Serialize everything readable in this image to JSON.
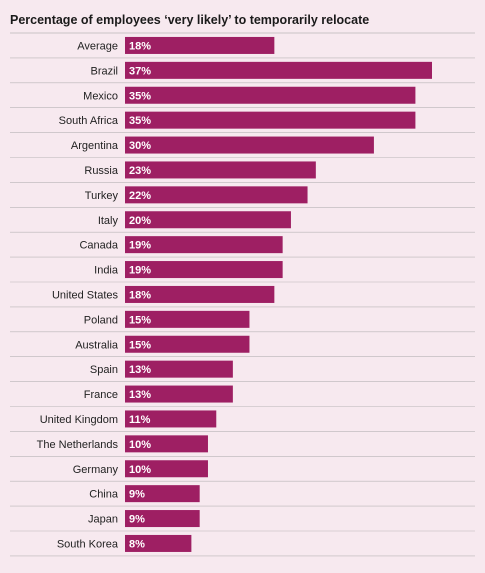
{
  "chart_data": {
    "type": "bar",
    "orientation": "horizontal",
    "title": "Percentage of employees ‘very likely’ to temporarily relocate",
    "categories": [
      "Average",
      "Brazil",
      "Mexico",
      "South Africa",
      "Argentina",
      "Russia",
      "Turkey",
      "Italy",
      "Canada",
      "India",
      "United States",
      "Poland",
      "Australia",
      "Spain",
      "France",
      "United Kingdom",
      "The Netherlands",
      "Germany",
      "China",
      "Japan",
      "South Korea"
    ],
    "values": [
      18,
      37,
      35,
      35,
      30,
      23,
      22,
      20,
      19,
      19,
      18,
      15,
      15,
      13,
      13,
      11,
      10,
      10,
      9,
      9,
      8
    ],
    "value_labels": [
      "18%",
      "37%",
      "35%",
      "35%",
      "30%",
      "23%",
      "22%",
      "20%",
      "19%",
      "19%",
      "18%",
      "15%",
      "15%",
      "13%",
      "13%",
      "11%",
      "10%",
      "10%",
      "9%",
      "9%",
      "8%"
    ],
    "xlim": [
      0,
      37
    ],
    "grid": false,
    "legend": "none",
    "colors": {
      "bar": "#9e1f63",
      "background": "#f7e9ef",
      "separator": "#b9b5b7",
      "title": "#1a1a1a"
    }
  }
}
